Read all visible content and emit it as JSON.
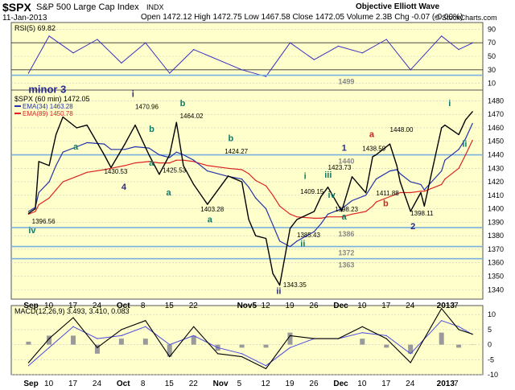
{
  "header": {
    "symbol": "$SPX",
    "name": "S&P 500 Large Cap Index",
    "exchange": "INDX",
    "site": "Objective Elliott Wave",
    "date": "11-Jan-2013",
    "ohlc": "Open 1472.12  High 1472.75  Low 1467.58  Close 1472.05  Volume 2.3B  Chg -0.07 (-0.00%)",
    "copyright": "© StockCharts.com"
  },
  "colors": {
    "panel_bg": "#ffffcc",
    "price": "#000000",
    "ema34": "#2233aa",
    "ema89": "#dd2222",
    "rsi": "#3a2fc0",
    "support": "#7ab0e0",
    "macd_hist": "#9a9a9a",
    "wave_green": "#117a66",
    "wave_navy": "#2a2a8a",
    "wave_red": "#cc2222",
    "wave_gray": "#888888",
    "gridline": "#c8c8c8"
  },
  "chart_data": [
    {
      "type": "line",
      "panel": "RSI",
      "title": "RSI(5) 69.82",
      "y_ticks": [
        "90",
        "70",
        "50",
        "30",
        "10"
      ],
      "ylim": [
        0,
        100
      ],
      "x": [
        "2012-09-04",
        "2012-09-10",
        "2012-09-17",
        "2012-09-24",
        "2012-10-01",
        "2012-10-08",
        "2012-10-15",
        "2012-10-22",
        "2012-11-05",
        "2012-11-12",
        "2012-11-19",
        "2012-11-26",
        "2012-12-03",
        "2012-12-10",
        "2012-12-17",
        "2012-12-24",
        "2013-01-02",
        "2013-01-07",
        "2013-01-11"
      ],
      "series": [
        {
          "name": "RSI(5)",
          "values": [
            25,
            80,
            55,
            75,
            40,
            70,
            25,
            60,
            30,
            20,
            70,
            45,
            65,
            55,
            75,
            30,
            80,
            60,
            69.82
          ]
        }
      ]
    },
    {
      "type": "line",
      "panel": "Price",
      "title": "$SPX (60 min) 1472.05",
      "legend": [
        "EMA(34) 1463.28",
        "EMA(89) 1450.78"
      ],
      "y_ticks": [
        "1480",
        "1470",
        "1460",
        "1450",
        "1440",
        "1430",
        "1420",
        "1410",
        "1400",
        "1390",
        "1380",
        "1370",
        "1360",
        "1350",
        "1340"
      ],
      "ylim": [
        1333,
        1488
      ],
      "x_ticks": [
        "Sep",
        "10",
        "17",
        "24",
        "Oct",
        "8",
        "15",
        "22",
        "Nov5",
        "12",
        "19",
        "26",
        "Dec",
        "10",
        "17",
        "24",
        "2013",
        "7"
      ],
      "support_levels": [
        {
          "value": 1499,
          "label": "1499"
        },
        {
          "value": 1440,
          "label": "1440"
        },
        {
          "value": 1386,
          "label": "1386"
        },
        {
          "value": 1372,
          "label": "1372"
        },
        {
          "value": 1363,
          "label": "1363"
        }
      ],
      "x": [
        "2012-09-04",
        "2012-09-06",
        "2012-09-07",
        "2012-09-10",
        "2012-09-12",
        "2012-09-14",
        "2012-09-18",
        "2012-09-21",
        "2012-09-26",
        "2012-09-28",
        "2012-10-02",
        "2012-10-05",
        "2012-10-09",
        "2012-10-12",
        "2012-10-15",
        "2012-10-17",
        "2012-10-19",
        "2012-10-22",
        "2012-10-26",
        "2012-11-01",
        "2012-11-05",
        "2012-11-07",
        "2012-11-09",
        "2012-11-12",
        "2012-11-14",
        "2012-11-16",
        "2012-11-19",
        "2012-11-21",
        "2012-11-26",
        "2012-11-28",
        "2012-11-30",
        "2012-12-04",
        "2012-12-07",
        "2012-12-11",
        "2012-12-13",
        "2012-12-14",
        "2012-12-18",
        "2012-12-20",
        "2012-12-21",
        "2012-12-24",
        "2012-12-27",
        "2012-12-28",
        "2013-01-02",
        "2013-01-03",
        "2013-01-07",
        "2013-01-09",
        "2013-01-11"
      ],
      "series": [
        {
          "name": "$SPX",
          "values": [
            1396.56,
            1400,
            1435,
            1432,
            1455,
            1468,
            1460,
            1462,
            1440,
            1430.53,
            1448,
            1462,
            1440,
            1425.53,
            1440,
            1464.02,
            1432,
            1418,
            1403.28,
            1424.27,
            1420,
            1392,
            1380,
            1378,
            1352,
            1343.35,
            1385.43,
            1392,
            1398,
            1409.15,
            1416,
            1398.23,
            1423.73,
            1411.88,
            1438.59,
            1440,
            1448,
            1432,
            1420,
            1398.11,
            1412,
            1402,
            1460,
            1462,
            1455,
            1466,
            1472.05
          ]
        },
        {
          "name": "EMA(34) 1463.28",
          "values": [
            1398,
            1401,
            1412,
            1420,
            1432,
            1442,
            1446,
            1449,
            1448,
            1444,
            1444,
            1446,
            1445,
            1440,
            1438,
            1442,
            1440,
            1436,
            1428,
            1424,
            1422,
            1416,
            1408,
            1400,
            1388,
            1376,
            1372,
            1376,
            1383,
            1389,
            1396,
            1400,
            1406,
            1410,
            1418,
            1422,
            1428,
            1429,
            1426,
            1420,
            1418,
            1414,
            1428,
            1436,
            1444,
            1452,
            1463.28
          ]
        },
        {
          "name": "EMA(89) 1450.78",
          "values": [
            1396,
            1398,
            1403,
            1408,
            1414,
            1420,
            1424,
            1427,
            1429,
            1430,
            1432,
            1434,
            1435,
            1434,
            1434,
            1436,
            1436,
            1435,
            1432,
            1430,
            1429,
            1426,
            1421,
            1417,
            1410,
            1402,
            1396,
            1394,
            1393,
            1393,
            1394,
            1394,
            1396,
            1398,
            1402,
            1405,
            1409,
            1411,
            1412,
            1412,
            1413,
            1413,
            1418,
            1422,
            1430,
            1440,
            1450.78
          ]
        }
      ],
      "annotations": [
        {
          "text": "minor 3",
          "x": "2012-09-04",
          "y": 1486
        },
        {
          "text": "iv",
          "x": "2012-09-04",
          "y": 1382
        },
        {
          "text": "1396.56",
          "x": "2012-09-05",
          "y": 1389
        },
        {
          "text": "a",
          "x": "2012-09-17",
          "y": 1444
        },
        {
          "text": "1430.53",
          "x": "2012-09-26",
          "y": 1426
        },
        {
          "text": "4",
          "x": "2012-10-01",
          "y": 1414
        },
        {
          "text": "i",
          "x": "2012-10-04",
          "y": 1483
        },
        {
          "text": "1470.96",
          "x": "2012-10-05",
          "y": 1474
        },
        {
          "text": "b",
          "x": "2012-10-09",
          "y": 1457
        },
        {
          "text": "a",
          "x": "2012-10-09",
          "y": 1432
        },
        {
          "text": "1425.53",
          "x": "2012-10-13",
          "y": 1427
        },
        {
          "text": "a",
          "x": "2012-10-14",
          "y": 1410
        },
        {
          "text": "b",
          "x": "2012-10-18",
          "y": 1476
        },
        {
          "text": "1464.02",
          "x": "2012-10-18",
          "y": 1467
        },
        {
          "text": "b",
          "x": "2012-11-01",
          "y": 1450
        },
        {
          "text": "1424.27",
          "x": "2012-10-31",
          "y": 1441
        },
        {
          "text": "1403.28",
          "x": "2012-10-24",
          "y": 1398
        },
        {
          "text": "a",
          "x": "2012-10-26",
          "y": 1390
        },
        {
          "text": "ii",
          "x": "2012-11-15",
          "y": 1337
        },
        {
          "text": "1343.35",
          "x": "2012-11-17",
          "y": 1342
        },
        {
          "text": "1385.43",
          "x": "2012-11-21",
          "y": 1379
        },
        {
          "text": "ii",
          "x": "2012-11-22",
          "y": 1372
        },
        {
          "text": "i",
          "x": "2012-11-23",
          "y": 1422
        },
        {
          "text": "1409.15",
          "x": "2012-11-22",
          "y": 1411
        },
        {
          "text": "iii",
          "x": "2012-11-29",
          "y": 1423
        },
        {
          "text": "1423.73",
          "x": "2012-11-30",
          "y": 1429
        },
        {
          "text": "iv",
          "x": "2012-11-30",
          "y": 1408
        },
        {
          "text": "1398.23",
          "x": "2012-12-02",
          "y": 1398
        },
        {
          "text": "a",
          "x": "2012-12-04",
          "y": 1392
        },
        {
          "text": "1",
          "x": "2012-12-04",
          "y": 1443
        },
        {
          "text": "a",
          "x": "2012-12-12",
          "y": 1453
        },
        {
          "text": "1438.59",
          "x": "2012-12-10",
          "y": 1443
        },
        {
          "text": "b",
          "x": "2012-12-16",
          "y": 1402
        },
        {
          "text": "1411.88",
          "x": "2012-12-14",
          "y": 1410
        },
        {
          "text": "1448.00",
          "x": "2012-12-18",
          "y": 1457
        },
        {
          "text": "1398.11",
          "x": "2012-12-24",
          "y": 1395
        },
        {
          "text": "2",
          "x": "2012-12-24",
          "y": 1385
        },
        {
          "text": "i",
          "x": "2013-01-04",
          "y": 1476
        },
        {
          "text": "ii",
          "x": "2013-01-08",
          "y": 1446
        }
      ]
    },
    {
      "type": "line",
      "panel": "MACD",
      "title": "MACD(12,26,9) 3.493, 3.410, 0.083",
      "y_ticks": [
        "10",
        "5",
        "0",
        "-5",
        "-10"
      ],
      "ylim": [
        -10,
        13
      ],
      "x": [
        "2012-09-04",
        "2012-09-10",
        "2012-09-17",
        "2012-09-24",
        "2012-10-01",
        "2012-10-08",
        "2012-10-15",
        "2012-10-22",
        "2012-10-29",
        "2012-11-05",
        "2012-11-12",
        "2012-11-19",
        "2012-11-26",
        "2012-12-03",
        "2012-12-10",
        "2012-12-17",
        "2012-12-24",
        "2013-01-02",
        "2013-01-07",
        "2013-01-11"
      ],
      "series": [
        {
          "name": "MACD",
          "values": [
            -6,
            2,
            9,
            -1,
            5,
            8,
            -4,
            6,
            -3,
            -4,
            -8,
            3,
            2,
            2,
            6,
            2,
            -6,
            12,
            5,
            3.493
          ]
        },
        {
          "name": "Signal",
          "values": [
            -7,
            -1,
            6,
            2,
            3,
            6,
            0,
            3,
            -1,
            -3,
            -7,
            -1,
            2,
            2,
            4,
            3,
            -3,
            8,
            6,
            3.41
          ]
        },
        {
          "name": "Histogram",
          "values": [
            1,
            3,
            3,
            -3,
            2,
            2,
            -4,
            3,
            -2,
            -1,
            -1,
            4,
            0,
            0,
            2,
            -1,
            -3,
            4,
            -1,
            0.083
          ]
        }
      ],
      "x_ticks": [
        "Sep",
        "10",
        "17",
        "24",
        "Oct",
        "8",
        "15",
        "22",
        "Nov",
        "5",
        "12",
        "19",
        "26",
        "Dec",
        "10",
        "17",
        "24",
        "2013",
        "7"
      ]
    }
  ]
}
